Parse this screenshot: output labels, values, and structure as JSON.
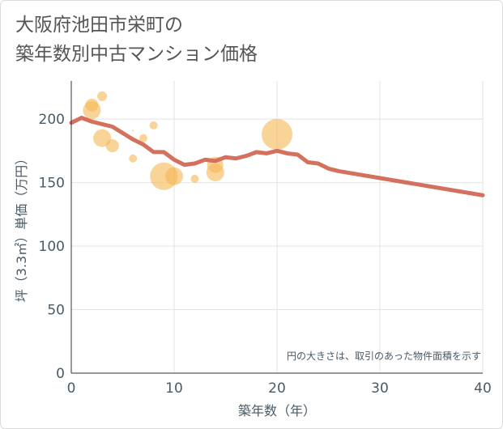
{
  "chart_data": {
    "type": "scatter",
    "title_lines": [
      "大阪府池田市栄町の",
      "築年数別中古マンション価格"
    ],
    "xlabel": "築年数（年）",
    "ylabel": "坪（3.3㎡）単価（万円）",
    "note": "円の大きさは、取引のあった物件面積を示す",
    "xlim": [
      0,
      40
    ],
    "ylim": [
      0,
      230
    ],
    "x_ticks": [
      0,
      10,
      20,
      30,
      40
    ],
    "y_ticks": [
      0,
      50,
      100,
      150,
      200
    ],
    "grid": true,
    "colors": {
      "bubble": "#f5b754",
      "line": "#d4705e",
      "grid": "#e3e3e3"
    },
    "bubbles": [
      {
        "x": 2,
        "y": 211,
        "size": 8
      },
      {
        "x": 2,
        "y": 207,
        "size": 11
      },
      {
        "x": 3,
        "y": 218,
        "size": 6
      },
      {
        "x": 3,
        "y": 185,
        "size": 11
      },
      {
        "x": 4,
        "y": 179,
        "size": 8
      },
      {
        "x": 6,
        "y": 191,
        "size": 1
      },
      {
        "x": 6,
        "y": 169,
        "size": 5
      },
      {
        "x": 7,
        "y": 185,
        "size": 5
      },
      {
        "x": 8,
        "y": 195,
        "size": 5
      },
      {
        "x": 9,
        "y": 155,
        "size": 17
      },
      {
        "x": 10,
        "y": 155,
        "size": 11
      },
      {
        "x": 12,
        "y": 153,
        "size": 5
      },
      {
        "x": 14,
        "y": 164,
        "size": 10
      },
      {
        "x": 14,
        "y": 158,
        "size": 11
      },
      {
        "x": 20,
        "y": 188,
        "size": 19
      }
    ],
    "trend": {
      "x": [
        0,
        1,
        2,
        3,
        4,
        5,
        6,
        7,
        8,
        9,
        10,
        11,
        12,
        13,
        14,
        15,
        16,
        17,
        18,
        19,
        20,
        21,
        22,
        23,
        24,
        25,
        26,
        40
      ],
      "y": [
        197,
        201,
        198,
        196,
        194,
        189,
        184,
        180,
        174,
        174,
        168,
        164,
        165,
        168,
        167,
        170,
        169,
        171,
        174,
        173,
        175,
        173,
        172,
        166,
        165,
        161,
        159,
        140
      ]
    }
  }
}
